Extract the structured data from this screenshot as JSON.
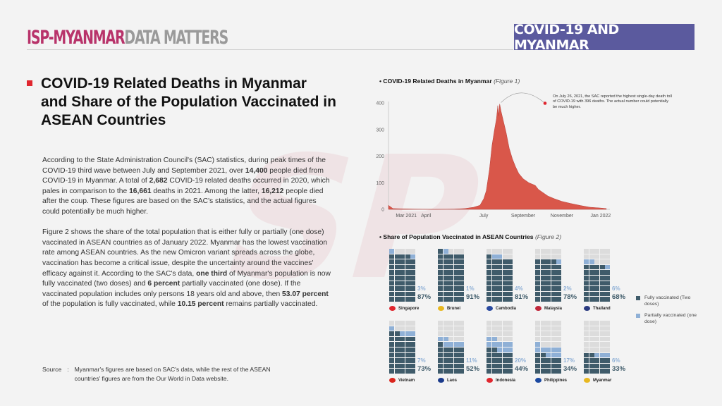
{
  "header": {
    "brand_primary": "ISP-MYANMAR",
    "brand_secondary": "DATA MATTERS",
    "banner": "COVID-19 AND MYANMAR"
  },
  "colors": {
    "brand": "#b8336a",
    "banner": "#5b5a9e",
    "bullet": "#e0262e",
    "area": "#d9574a",
    "fully": "#3f5b6a",
    "partial": "#8fb0d6",
    "empty": "#dcdcdc"
  },
  "article": {
    "title": "COVID-19 Related Deaths in Myanmar and Share of the Population Vaccinated in ASEAN Countries",
    "p1": [
      {
        "t": "According to the State Administration Council's (SAC) statistics, during peak times of the COVID-19 third wave between July and September 2021, over "
      },
      {
        "t": "14,400",
        "b": true
      },
      {
        "t": " people died from COVID-19 in Myanmar. A total of "
      },
      {
        "t": "2,682",
        "b": true
      },
      {
        "t": " COVID-19 related deaths occurred in 2020, which pales in comparison to the "
      },
      {
        "t": "16,661",
        "b": true
      },
      {
        "t": " deaths in 2021. Among the latter, "
      },
      {
        "t": "16,212",
        "b": true
      },
      {
        "t": " people died after the coup. These figures are based on the SAC's statistics, and the actual figures could potentially be much higher."
      }
    ],
    "p2": [
      {
        "t": "Figure 2 shows the share of the total population that is either fully or partially (one dose) vaccinated in ASEAN countries as of January 2022. Myanmar has the lowest vaccination rate among ASEAN countries. As the new Omicron variant spreads across the globe, vaccination has become a critical issue, despite the uncertainty around the vaccines' efficacy against it. According to the SAC's data, "
      },
      {
        "t": "one third",
        "b": true
      },
      {
        "t": " of Myanmar's population is now fully vaccinated (two doses) and "
      },
      {
        "t": "6 percent",
        "b": true
      },
      {
        "t": " partially vaccinated (one dose). If the vaccinated population includes only persons 18 years old and above, then "
      },
      {
        "t": "53.07 percent",
        "b": true
      },
      {
        "t": " of the population is fully vaccinated, while "
      },
      {
        "t": "10.15 percent",
        "b": true
      },
      {
        "t": " remains partially vaccinated."
      }
    ],
    "source_label": "Source",
    "source_sep": ":",
    "source_text": "Myanmar's figures are based on SAC's data, while the rest of the ASEAN countries' figures are from the Our World in Data website."
  },
  "chart_data": [
    {
      "type": "area",
      "title": "COVID-19 Related Deaths in Myanmar",
      "title_suffix": "(Figure 1)",
      "x_ticks": [
        "Mar 2021",
        "April",
        "July",
        "September",
        "November",
        "Jan 2022"
      ],
      "y_ticks": [
        0,
        100,
        200,
        300,
        400
      ],
      "ylim": [
        0,
        400
      ],
      "xlim": [
        "2021-02-01",
        "2022-01-10"
      ],
      "annotation": "On July 26, 2021, the SAC reported the highest single-day death toll of COVID-19 with 396 deaths. The actual number could potentially be much higher.",
      "peak": {
        "date": "2021-07-26",
        "value": 396
      },
      "points": [
        [
          "2021-02-01",
          15
        ],
        [
          "2021-02-08",
          3
        ],
        [
          "2021-02-20",
          2
        ],
        [
          "2021-03-15",
          1
        ],
        [
          "2021-04-15",
          0
        ],
        [
          "2021-05-15",
          1
        ],
        [
          "2021-06-01",
          3
        ],
        [
          "2021-06-15",
          8
        ],
        [
          "2021-06-25",
          15
        ],
        [
          "2021-07-01",
          40
        ],
        [
          "2021-07-05",
          70
        ],
        [
          "2021-07-10",
          150
        ],
        [
          "2021-07-14",
          240
        ],
        [
          "2021-07-18",
          300
        ],
        [
          "2021-07-21",
          340
        ],
        [
          "2021-07-23",
          390
        ],
        [
          "2021-07-24",
          350
        ],
        [
          "2021-07-26",
          396
        ],
        [
          "2021-07-28",
          370
        ],
        [
          "2021-08-01",
          330
        ],
        [
          "2021-08-05",
          290
        ],
        [
          "2021-08-10",
          230
        ],
        [
          "2021-08-15",
          190
        ],
        [
          "2021-08-20",
          160
        ],
        [
          "2021-08-25",
          135
        ],
        [
          "2021-09-01",
          115
        ],
        [
          "2021-09-10",
          100
        ],
        [
          "2021-09-20",
          90
        ],
        [
          "2021-09-25",
          75
        ],
        [
          "2021-10-01",
          65
        ],
        [
          "2021-10-10",
          50
        ],
        [
          "2021-10-20",
          40
        ],
        [
          "2021-11-01",
          30
        ],
        [
          "2021-11-15",
          22
        ],
        [
          "2021-12-01",
          14
        ],
        [
          "2021-12-15",
          8
        ],
        [
          "2022-01-01",
          5
        ],
        [
          "2022-01-10",
          3
        ]
      ]
    },
    {
      "type": "waffle",
      "title": "Share of Population Vaccinated in ASEAN Countries",
      "title_suffix": "(Figure 2)",
      "legend": [
        "Fully vaccinated (Two doses)",
        "Partially vaccinated (one dose)"
      ],
      "countries": [
        {
          "name": "Singapore",
          "fully": 87,
          "partial": 3,
          "flag": "#e0262e"
        },
        {
          "name": "Brunei",
          "fully": 91,
          "partial": 1,
          "flag": "#e8b820"
        },
        {
          "name": "Cambodia",
          "fully": 81,
          "partial": 4,
          "flag": "#2a4aa0"
        },
        {
          "name": "Malaysia",
          "fully": 78,
          "partial": 2,
          "flag": "#c0263a"
        },
        {
          "name": "Thailand",
          "fully": 68,
          "partial": 6,
          "flag": "#2a3a80"
        },
        {
          "name": "Vietnam",
          "fully": 73,
          "partial": 7,
          "flag": "#da251d"
        },
        {
          "name": "Laos",
          "fully": 52,
          "partial": 11,
          "flag": "#1a3a8a"
        },
        {
          "name": "Indonesia",
          "fully": 44,
          "partial": 20,
          "flag": "#e0262e"
        },
        {
          "name": "Philippines",
          "fully": 34,
          "partial": 17,
          "flag": "#1a48a0"
        },
        {
          "name": "Myanmar",
          "fully": 33,
          "partial": 6,
          "flag": "#e8b820"
        }
      ]
    }
  ]
}
